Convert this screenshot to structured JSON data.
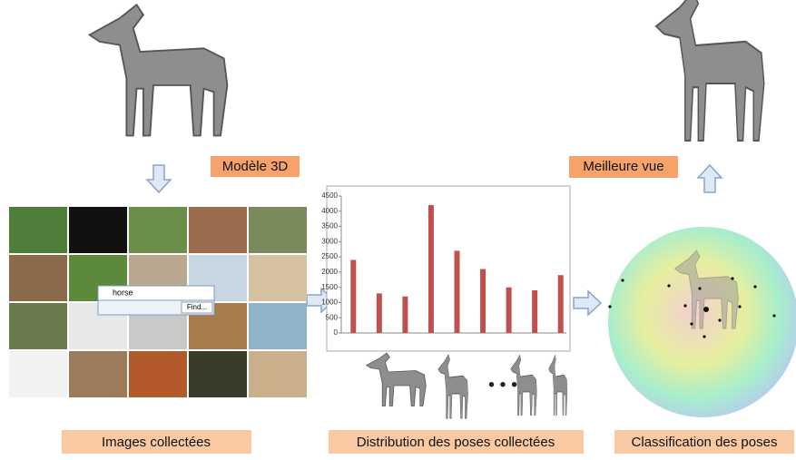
{
  "labels": {
    "model": "Modèle 3D",
    "best_view": "Meilleure vue",
    "images": "Images collectées",
    "distribution": "Distribution des poses collectées",
    "classification": "Classification des poses"
  },
  "search": {
    "query": "horse",
    "button": "Find..."
  },
  "chart": {
    "type": "bar",
    "values": [
      2400,
      1300,
      1200,
      4200,
      2700,
      2100,
      1500,
      1400,
      1900
    ],
    "color": "#c0504d",
    "ylim": [
      0,
      4500
    ],
    "yticks": [
      0,
      500,
      1000,
      1500,
      2000,
      2500,
      3000,
      3500,
      4000,
      4500
    ]
  }
}
